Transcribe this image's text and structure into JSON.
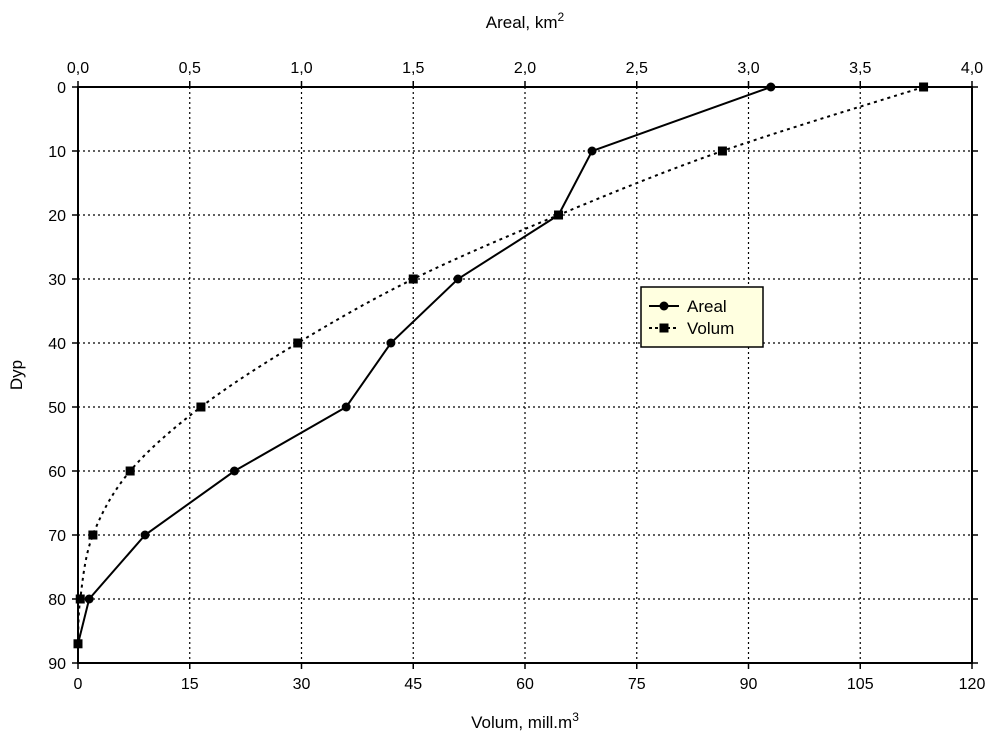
{
  "chart_data": {
    "type": "line",
    "xlabel_top": "Areal, km",
    "xlabel_top_sup": "2",
    "xlabel_bottom": "Volum, mill.m",
    "xlabel_bottom_sup": "3",
    "ylabel": "Dyp",
    "top_axis": {
      "range": [
        0,
        4
      ],
      "ticks": [
        0,
        0.5,
        1,
        1.5,
        2,
        2.5,
        3,
        3.5,
        4
      ],
      "tick_labels": [
        "0,0",
        "0,5",
        "1,0",
        "1,5",
        "2,0",
        "2,5",
        "3,0",
        "3,5",
        "4,0"
      ]
    },
    "bottom_axis": {
      "range": [
        0,
        120
      ],
      "ticks": [
        0,
        15,
        30,
        45,
        60,
        75,
        90,
        105,
        120
      ],
      "tick_labels": [
        "0",
        "15",
        "30",
        "45",
        "60",
        "75",
        "90",
        "105",
        "120"
      ]
    },
    "y_axis": {
      "range": [
        0,
        90
      ],
      "inverted": true,
      "ticks": [
        0,
        10,
        20,
        30,
        40,
        50,
        60,
        70,
        80,
        90
      ],
      "tick_labels": [
        "0",
        "10",
        "20",
        "30",
        "40",
        "50",
        "60",
        "70",
        "80",
        "90"
      ]
    },
    "grid": true,
    "legend_position": "center-right",
    "series": [
      {
        "name": "Areal",
        "axis": "top",
        "line_style": "solid",
        "marker": "circle",
        "color": "#000000",
        "points": [
          {
            "x": 3.1,
            "y": 0
          },
          {
            "x": 2.3,
            "y": 10
          },
          {
            "x": 2.15,
            "y": 20
          },
          {
            "x": 1.7,
            "y": 30
          },
          {
            "x": 1.4,
            "y": 40
          },
          {
            "x": 1.2,
            "y": 50
          },
          {
            "x": 0.7,
            "y": 60
          },
          {
            "x": 0.3,
            "y": 70
          },
          {
            "x": 0.05,
            "y": 80
          },
          {
            "x": 0.0,
            "y": 87
          }
        ]
      },
      {
        "name": "Volum",
        "axis": "bottom",
        "line_style": "dotted",
        "marker": "square",
        "color": "#000000",
        "points": [
          {
            "x": 113.5,
            "y": 0
          },
          {
            "x": 86.5,
            "y": 10
          },
          {
            "x": 64.5,
            "y": 20
          },
          {
            "x": 45,
            "y": 30
          },
          {
            "x": 29.5,
            "y": 40
          },
          {
            "x": 16.5,
            "y": 50
          },
          {
            "x": 7,
            "y": 60
          },
          {
            "x": 2,
            "y": 70
          },
          {
            "x": 0.3,
            "y": 80
          },
          {
            "x": 0,
            "y": 87
          }
        ]
      }
    ],
    "legend_bg": "#ffffe0"
  }
}
